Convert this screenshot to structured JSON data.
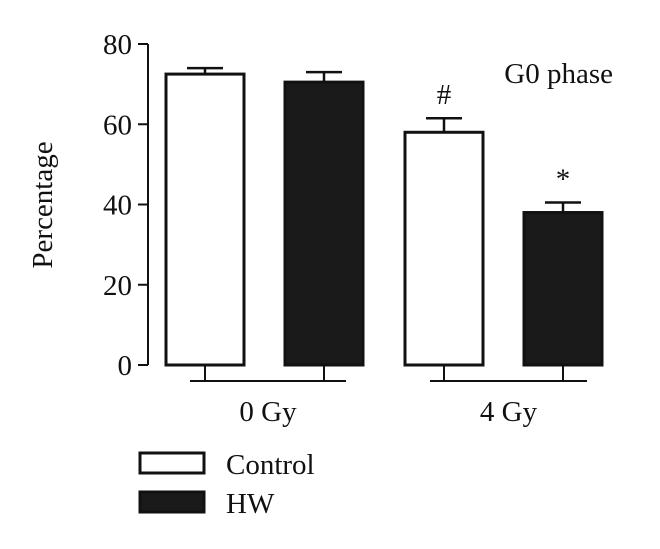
{
  "chart_data": {
    "type": "bar",
    "title": "G0 phase",
    "ylabel": "Percentage",
    "xlabel": "",
    "ylim": [
      0,
      80
    ],
    "yticks": [
      0,
      20,
      40,
      60,
      80
    ],
    "categories": [
      "0 Gy",
      "4 Gy"
    ],
    "series": [
      {
        "name": "Control",
        "fill": "#ffffff",
        "values": [
          72.5,
          58.0
        ],
        "errors": [
          1.5,
          3.5
        ],
        "annotations": [
          "",
          "#"
        ]
      },
      {
        "name": "HW",
        "fill": "#1a1a1a",
        "values": [
          70.5,
          38.0
        ],
        "errors": [
          2.5,
          2.5
        ],
        "annotations": [
          "",
          "*"
        ]
      }
    ],
    "legend_position": "bottom-left",
    "grid": false
  }
}
